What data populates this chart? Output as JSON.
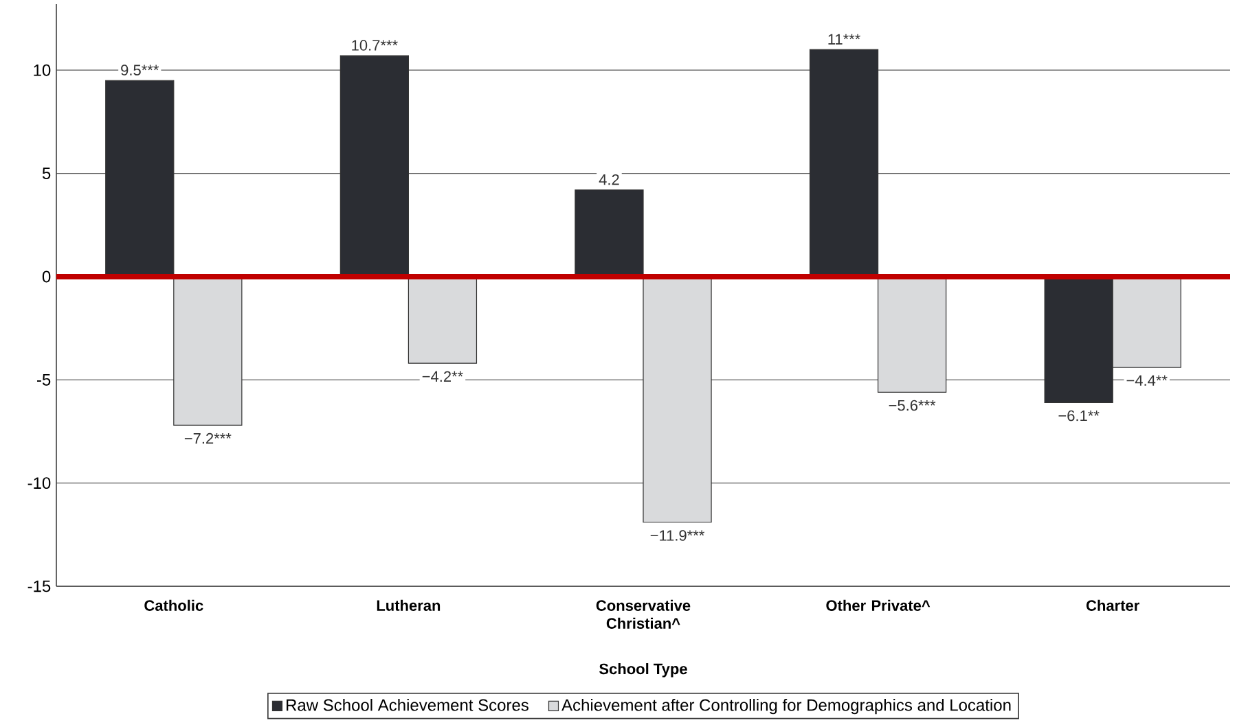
{
  "chart_data": {
    "type": "bar",
    "xlabel": "School Type",
    "categories": [
      "Catholic",
      "Lutheran",
      "Conservative Christian^",
      "Other Private^",
      "Charter"
    ],
    "series": [
      {
        "name": "Raw School Achievement Scores",
        "color": "#2b2d33",
        "values": [
          9.5,
          10.7,
          4.2,
          11,
          -6.1
        ],
        "value_labels": [
          "9.5***",
          "10.7***",
          "4.2",
          "11***",
          "−6.1**"
        ]
      },
      {
        "name": "Achievement after Controlling for Demographics and Location",
        "color": "#d9dadc",
        "values": [
          -7.2,
          -4.2,
          -11.9,
          -5.6,
          -4.4
        ],
        "value_labels": [
          "−7.2***",
          "−4.2**",
          "−11.9***",
          "−5.6***",
          "−4.4**"
        ]
      }
    ],
    "ylim": [
      -15,
      13.2
    ],
    "yticks": [
      -15,
      -10,
      -5,
      0,
      5,
      10
    ],
    "grid": "y",
    "legend": "bottom",
    "ref_lines": [
      {
        "axis": "y",
        "value": 0,
        "color": "#c00000"
      }
    ]
  }
}
